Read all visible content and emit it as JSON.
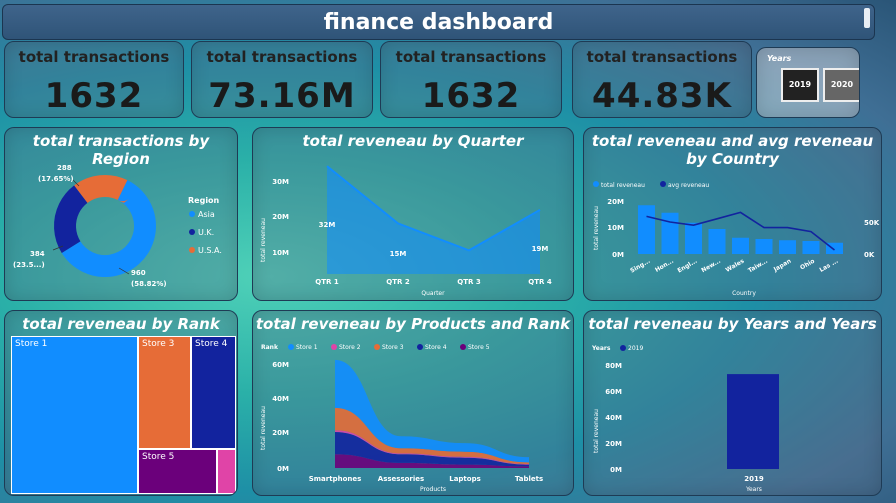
{
  "header": {
    "title": "finance dashboard"
  },
  "kpis": [
    {
      "label": "total transactions",
      "value": "1632"
    },
    {
      "label": "total transactions",
      "value": "73.16M"
    },
    {
      "label": "total transactions",
      "value": "1632"
    },
    {
      "label": "total transactions",
      "value": "44.83K"
    }
  ],
  "years_slicer": {
    "label": "Years",
    "options": [
      "2019",
      "2020"
    ]
  },
  "region_chart": {
    "title": "total transactions by Region",
    "legend_title": "Region",
    "colors": {
      "Asia": "#118dff",
      "U.K.": "#12239e",
      "U.S.A.": "#e66c37"
    },
    "labels": {
      "usa_value": "288",
      "usa_pct": "(17.65%)",
      "uk_value": "384",
      "uk_pct": "(23.5...)",
      "asia_value": "960",
      "asia_pct": "(58.82%)"
    }
  },
  "quarter_chart": {
    "title": "total reveneau by Quarter",
    "ylabel": "total reveneau",
    "xlabel": "Quarter",
    "yticks": [
      "30M",
      "20M",
      "10M"
    ],
    "data_labels": [
      "32M",
      "15M",
      "19M"
    ]
  },
  "country_chart": {
    "title": "total reveneau and avg reveneau by Country",
    "legend": [
      "total reveneau",
      "avg reveneau"
    ],
    "ylabel": "total reveneau",
    "xlabel": "Country",
    "yticks_left": [
      "20M",
      "10M",
      "0M"
    ],
    "yticks_right": [
      "50K",
      "0K"
    ]
  },
  "rank_chart": {
    "title": "total reveneau by Rank",
    "stores": [
      "Store 1",
      "Store 3",
      "Store 4",
      "Store 5"
    ]
  },
  "products_chart": {
    "title": "total reveneau by Products and Rank",
    "legend_title": "Rank",
    "legend": [
      "Store 1",
      "Store 2",
      "Store 3",
      "Store 4",
      "Store 5"
    ],
    "ylabel": "total reveneau",
    "xlabel": "Products",
    "yticks": [
      "60M",
      "40M",
      "20M",
      "0M"
    ]
  },
  "years_chart": {
    "title": "total reveneau by Years and Years",
    "legend_title": "Years",
    "legend": [
      "2019"
    ],
    "ylabel": "total reveneau",
    "xlabel": "Years",
    "yticks": [
      "80M",
      "60M",
      "40M",
      "20M",
      "0M"
    ]
  },
  "chart_data": [
    {
      "type": "pie",
      "title": "total transactions by Region",
      "categories": [
        "Asia",
        "U.K.",
        "U.S.A."
      ],
      "values": [
        960,
        384,
        288
      ],
      "percent_labels": [
        "58.82%",
        "23.5...",
        "17.65%"
      ],
      "legend": "right"
    },
    {
      "type": "area",
      "title": "total reveneau by Quarter",
      "categories": [
        "QTR 1",
        "QTR 2",
        "QTR 3",
        "QTR 4"
      ],
      "values": [
        32000000,
        15000000,
        7000000,
        19000000
      ],
      "ylabel": "total reveneau",
      "xlabel": "Quarter",
      "ylim": [
        0,
        35000000
      ]
    },
    {
      "type": "bar",
      "title": "total reveneau and avg reveneau by Country",
      "categories": [
        "Sing...",
        "Hon...",
        "Engl...",
        "New...",
        "Wales",
        "Taiw...",
        "Japan",
        "Ohio",
        "Las ..."
      ],
      "series": [
        {
          "name": "total reveneau",
          "values": [
            19500000,
            16500000,
            12500000,
            10000000,
            6500000,
            6000000,
            5500000,
            5200000,
            4500000
          ]
        },
        {
          "name": "avg reveneau",
          "values": [
            47000,
            40000,
            36000,
            44000,
            52000,
            33000,
            33000,
            28000,
            5000
          ]
        }
      ],
      "ylabel": "total reveneau",
      "xlabel": "Country",
      "ylim": [
        0,
        22000000
      ]
    },
    {
      "type": "table",
      "title": "total reveneau by Rank",
      "categories": [
        "Store 1",
        "Store 3",
        "Store 4",
        "Store 5",
        "Store 2"
      ],
      "values": [
        30000000,
        13000000,
        12000000,
        9000000,
        2000000
      ]
    },
    {
      "type": "area",
      "title": "total reveneau by Products and Rank",
      "categories": [
        "Smartphones",
        "Assessories",
        "Laptops",
        "Tablets"
      ],
      "series": [
        {
          "name": "Store 1",
          "values": [
            28000000,
            7000000,
            5000000,
            3000000
          ]
        },
        {
          "name": "Store 2",
          "values": [
            1000000,
            500000,
            500000,
            300000
          ]
        },
        {
          "name": "Store 3",
          "values": [
            13000000,
            3000000,
            3000000,
            1000000
          ]
        },
        {
          "name": "Store 4",
          "values": [
            13000000,
            5000000,
            4000000,
            1000000
          ]
        },
        {
          "name": "Store 5",
          "values": [
            8000000,
            3000000,
            2000000,
            1000000
          ]
        }
      ],
      "ylabel": "total reveneau",
      "xlabel": "Products",
      "ylim": [
        0,
        60000000
      ]
    },
    {
      "type": "bar",
      "title": "total reveneau by Years and Years",
      "categories": [
        "2019"
      ],
      "values": [
        73000000
      ],
      "ylabel": "total reveneau",
      "xlabel": "Years",
      "ylim": [
        0,
        80000000
      ]
    }
  ]
}
